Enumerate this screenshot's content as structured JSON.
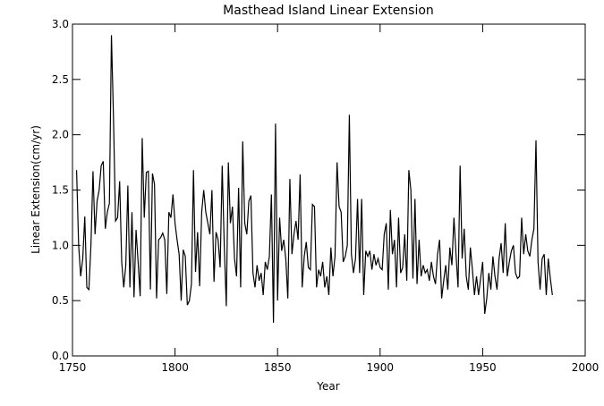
{
  "chart_data": {
    "type": "line",
    "title": "Masthead Island Linear Extension",
    "x_label": "Year",
    "y_label": "Linear Extension(cm/yr)",
    "color": "#000000",
    "x": [
      1752,
      1753,
      1754,
      1755,
      1756,
      1757,
      1758,
      1759,
      1760,
      1761,
      1762,
      1763,
      1764,
      1765,
      1766,
      1767,
      1768,
      1769,
      1770,
      1771,
      1772,
      1773,
      1774,
      1775,
      1776,
      1777,
      1778,
      1779,
      1780,
      1781,
      1782,
      1783,
      1784,
      1785,
      1786,
      1787,
      1788,
      1789,
      1790,
      1791,
      1792,
      1793,
      1794,
      1795,
      1796,
      1797,
      1798,
      1799,
      1800,
      1801,
      1802,
      1803,
      1804,
      1805,
      1806,
      1807,
      1808,
      1809,
      1810,
      1811,
      1812,
      1813,
      1814,
      1815,
      1816,
      1817,
      1818,
      1819,
      1820,
      1821,
      1822,
      1823,
      1824,
      1825,
      1826,
      1827,
      1828,
      1829,
      1830,
      1831,
      1832,
      1833,
      1834,
      1835,
      1836,
      1837,
      1838,
      1839,
      1840,
      1841,
      1842,
      1843,
      1844,
      1845,
      1846,
      1847,
      1848,
      1849,
      1850,
      1851,
      1852,
      1853,
      1854,
      1855,
      1856,
      1857,
      1858,
      1859,
      1860,
      1861,
      1862,
      1863,
      1864,
      1865,
      1866,
      1867,
      1868,
      1869,
      1870,
      1871,
      1872,
      1873,
      1874,
      1875,
      1876,
      1877,
      1878,
      1879,
      1880,
      1881,
      1882,
      1883,
      1884,
      1885,
      1886,
      1887,
      1888,
      1889,
      1890,
      1891,
      1892,
      1893,
      1894,
      1895,
      1896,
      1897,
      1898,
      1899,
      1900,
      1901,
      1902,
      1903,
      1904,
      1905,
      1906,
      1907,
      1908,
      1909,
      1910,
      1911,
      1912,
      1913,
      1914,
      1915,
      1916,
      1917,
      1918,
      1919,
      1920,
      1921,
      1922,
      1923,
      1924,
      1925,
      1926,
      1927,
      1928,
      1929,
      1930,
      1931,
      1932,
      1933,
      1934,
      1935,
      1936,
      1937,
      1938,
      1939,
      1940,
      1941,
      1942,
      1943,
      1944,
      1945,
      1946,
      1947,
      1948,
      1949,
      1950,
      1951,
      1952,
      1953,
      1954,
      1955,
      1956,
      1957,
      1958,
      1959,
      1960,
      1961,
      1962,
      1963,
      1964,
      1965,
      1966,
      1967,
      1968,
      1969,
      1970,
      1971,
      1972,
      1973,
      1974,
      1975,
      1976,
      1977,
      1978,
      1979,
      1980,
      1981,
      1982,
      1983,
      1984
    ],
    "values": [
      1.68,
      1.0,
      0.72,
      0.88,
      1.26,
      0.62,
      0.6,
      1.0,
      1.67,
      1.1,
      1.4,
      1.5,
      1.72,
      1.76,
      1.15,
      1.3,
      1.38,
      2.9,
      2.15,
      1.22,
      1.25,
      1.58,
      0.85,
      0.62,
      0.82,
      1.54,
      0.62,
      1.3,
      0.53,
      1.14,
      0.85,
      0.54,
      1.97,
      1.25,
      1.66,
      1.67,
      0.6,
      1.65,
      1.55,
      0.52,
      1.05,
      1.07,
      1.11,
      1.05,
      0.56,
      1.3,
      1.25,
      1.46,
      1.2,
      1.05,
      0.92,
      0.5,
      0.96,
      0.9,
      0.46,
      0.5,
      0.65,
      1.68,
      0.76,
      1.12,
      0.63,
      1.3,
      1.5,
      1.3,
      1.2,
      1.1,
      1.5,
      0.67,
      1.12,
      1.05,
      0.8,
      1.72,
      1.0,
      0.45,
      1.75,
      1.2,
      1.35,
      0.88,
      0.72,
      1.52,
      0.62,
      1.94,
      1.2,
      1.1,
      1.4,
      1.45,
      0.75,
      0.62,
      0.82,
      0.68,
      0.75,
      0.55,
      0.85,
      0.78,
      0.9,
      1.46,
      0.3,
      2.1,
      0.5,
      1.25,
      0.95,
      1.05,
      0.88,
      0.52,
      1.6,
      0.92,
      1.1,
      1.22,
      1.05,
      1.64,
      0.62,
      0.9,
      1.03,
      0.8,
      0.78,
      1.37,
      1.35,
      0.62,
      0.78,
      0.72,
      0.85,
      0.62,
      0.72,
      0.55,
      0.98,
      0.72,
      0.9,
      1.75,
      1.35,
      1.3,
      0.85,
      0.9,
      1.0,
      2.18,
      0.92,
      0.75,
      0.88,
      1.42,
      0.75,
      1.42,
      0.55,
      0.95,
      0.9,
      0.95,
      0.78,
      0.92,
      0.82,
      0.88,
      0.8,
      0.78,
      1.1,
      1.2,
      0.6,
      1.32,
      0.92,
      1.05,
      0.62,
      1.25,
      0.75,
      0.8,
      1.1,
      0.68,
      1.68,
      1.5,
      0.7,
      1.42,
      0.65,
      1.05,
      0.72,
      0.82,
      0.75,
      0.78,
      0.68,
      0.85,
      0.72,
      0.65,
      0.92,
      1.05,
      0.52,
      0.68,
      0.82,
      0.6,
      0.98,
      0.82,
      1.25,
      0.92,
      0.62,
      1.72,
      0.88,
      1.15,
      0.72,
      0.6,
      0.98,
      0.78,
      0.55,
      0.72,
      0.55,
      0.7,
      0.85,
      0.38,
      0.52,
      0.75,
      0.6,
      0.9,
      0.72,
      0.6,
      0.88,
      1.02,
      0.75,
      1.2,
      0.72,
      0.85,
      0.95,
      1.0,
      0.75,
      0.7,
      0.72,
      1.25,
      0.92,
      1.1,
      0.95,
      0.9,
      1.05,
      1.15,
      1.95,
      0.85,
      0.6,
      0.88,
      0.92,
      0.55,
      0.88,
      0.7,
      0.55
    ],
    "xlim": [
      1750,
      2000
    ],
    "xticks": [
      1750,
      1800,
      1850,
      1900,
      1950,
      2000
    ],
    "ylim": [
      0,
      3
    ],
    "yticks": [
      {
        "value": 0,
        "label": "0.0"
      },
      0.5,
      {
        "value": 1,
        "label": "1.0"
      },
      1.5,
      {
        "value": 2,
        "label": "2.0"
      },
      2.5,
      {
        "value": 3,
        "label": "3.0"
      }
    ]
  }
}
